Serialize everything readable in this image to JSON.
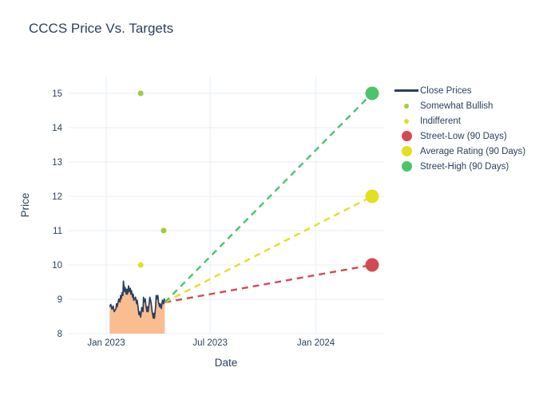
{
  "title": "CCCS Price Vs. Targets",
  "legend": {
    "items": [
      {
        "label": "Close Prices",
        "marker": "line",
        "color": "#2a3f5f"
      },
      {
        "label": "Somewhat Bullish",
        "marker": "dot-sm",
        "color": "#a1cc3a"
      },
      {
        "label": "Indifferent",
        "marker": "dot-sm",
        "color": "#e3df21"
      },
      {
        "label": "Street-Low (90 Days)",
        "marker": "dot-lg",
        "color": "#d24b53"
      },
      {
        "label": "Average Rating (90 Days)",
        "marker": "dot-lg",
        "color": "#e3df21"
      },
      {
        "label": "Street-High (90 Days)",
        "marker": "dot-lg",
        "color": "#4dc46a"
      }
    ]
  },
  "chart_data": {
    "type": "line",
    "title": "CCCS Price Vs. Targets",
    "xlabel": "Date",
    "ylabel": "Price",
    "grid": true,
    "legend_position": "right-outside",
    "ylim": [
      8,
      15.49
    ],
    "y_ticks": [
      8,
      9,
      10,
      11,
      12,
      13,
      14,
      15
    ],
    "x_ticks": [
      {
        "label": "Jan 2023",
        "day": 0
      },
      {
        "label": "Jul 2023",
        "day": 181
      },
      {
        "label": "Jan 2024",
        "day": 365
      }
    ],
    "x_range_days": [
      -65,
      484
    ],
    "x_unit": "days_since_2023_01_01",
    "series": [
      {
        "name": "Close Prices",
        "type": "area_line",
        "line_color": "#2a3f5f",
        "fill_color": "#f9bd90",
        "days": [
          6,
          8,
          10,
          12,
          14,
          17,
          18,
          19,
          22,
          24,
          25,
          26,
          28,
          29,
          30,
          32,
          33,
          35,
          36,
          37,
          39,
          40,
          42,
          43,
          44,
          46,
          47,
          48,
          51,
          53,
          54,
          55,
          57,
          58,
          60,
          61,
          62,
          64,
          65,
          66,
          68,
          69,
          71,
          72,
          73,
          75,
          76,
          78,
          79,
          80,
          82,
          83,
          84,
          86,
          87,
          89,
          90,
          91,
          93,
          94,
          96,
          97,
          98,
          100,
          101,
          102
        ],
        "prices": [
          8.78,
          8.85,
          8.71,
          8.8,
          8.64,
          8.73,
          8.87,
          8.78,
          9.01,
          8.92,
          9.11,
          9.01,
          9.2,
          9.11,
          9.53,
          9.22,
          9.34,
          9.15,
          9.29,
          9.15,
          9.39,
          9.22,
          9.32,
          9.15,
          9.25,
          9.06,
          9.15,
          8.97,
          9.06,
          8.87,
          8.97,
          8.83,
          8.55,
          8.64,
          8.48,
          8.64,
          8.76,
          8.64,
          9.06,
          8.92,
          9.01,
          8.83,
          8.64,
          8.78,
          8.64,
          8.92,
          9.06,
          8.92,
          8.78,
          8.64,
          8.45,
          8.59,
          8.45,
          8.78,
          9.11,
          9.01,
          9.11,
          8.92,
          8.78,
          8.87,
          8.73,
          8.87,
          8.97,
          8.87,
          9.01,
          8.91
        ]
      },
      {
        "name": "Somewhat Bullish",
        "type": "scatter",
        "color": "#a1cc3a",
        "radius": 3.5,
        "points": [
          {
            "day": 60,
            "price": 15
          },
          {
            "day": 100,
            "price": 11
          }
        ]
      },
      {
        "name": "Indifferent",
        "type": "scatter",
        "color": "#e3df21",
        "radius": 3.5,
        "points": [
          {
            "day": 60,
            "price": 10
          }
        ]
      },
      {
        "name": "Street-Low (90 Days)",
        "type": "target",
        "color": "#d24b53",
        "radius": 8.5,
        "anchor": {
          "day": 102,
          "price": 8.91
        },
        "point": {
          "day": 463,
          "price": 10
        }
      },
      {
        "name": "Average Rating (90 Days)",
        "type": "target",
        "color": "#e3df21",
        "radius": 8.5,
        "anchor": {
          "day": 102,
          "price": 8.91
        },
        "point": {
          "day": 463,
          "price": 12
        }
      },
      {
        "name": "Street-High (90 Days)",
        "type": "target",
        "color": "#4dc46a",
        "radius": 8.5,
        "anchor": {
          "day": 102,
          "price": 8.91
        },
        "point": {
          "day": 463,
          "price": 15
        }
      }
    ]
  }
}
